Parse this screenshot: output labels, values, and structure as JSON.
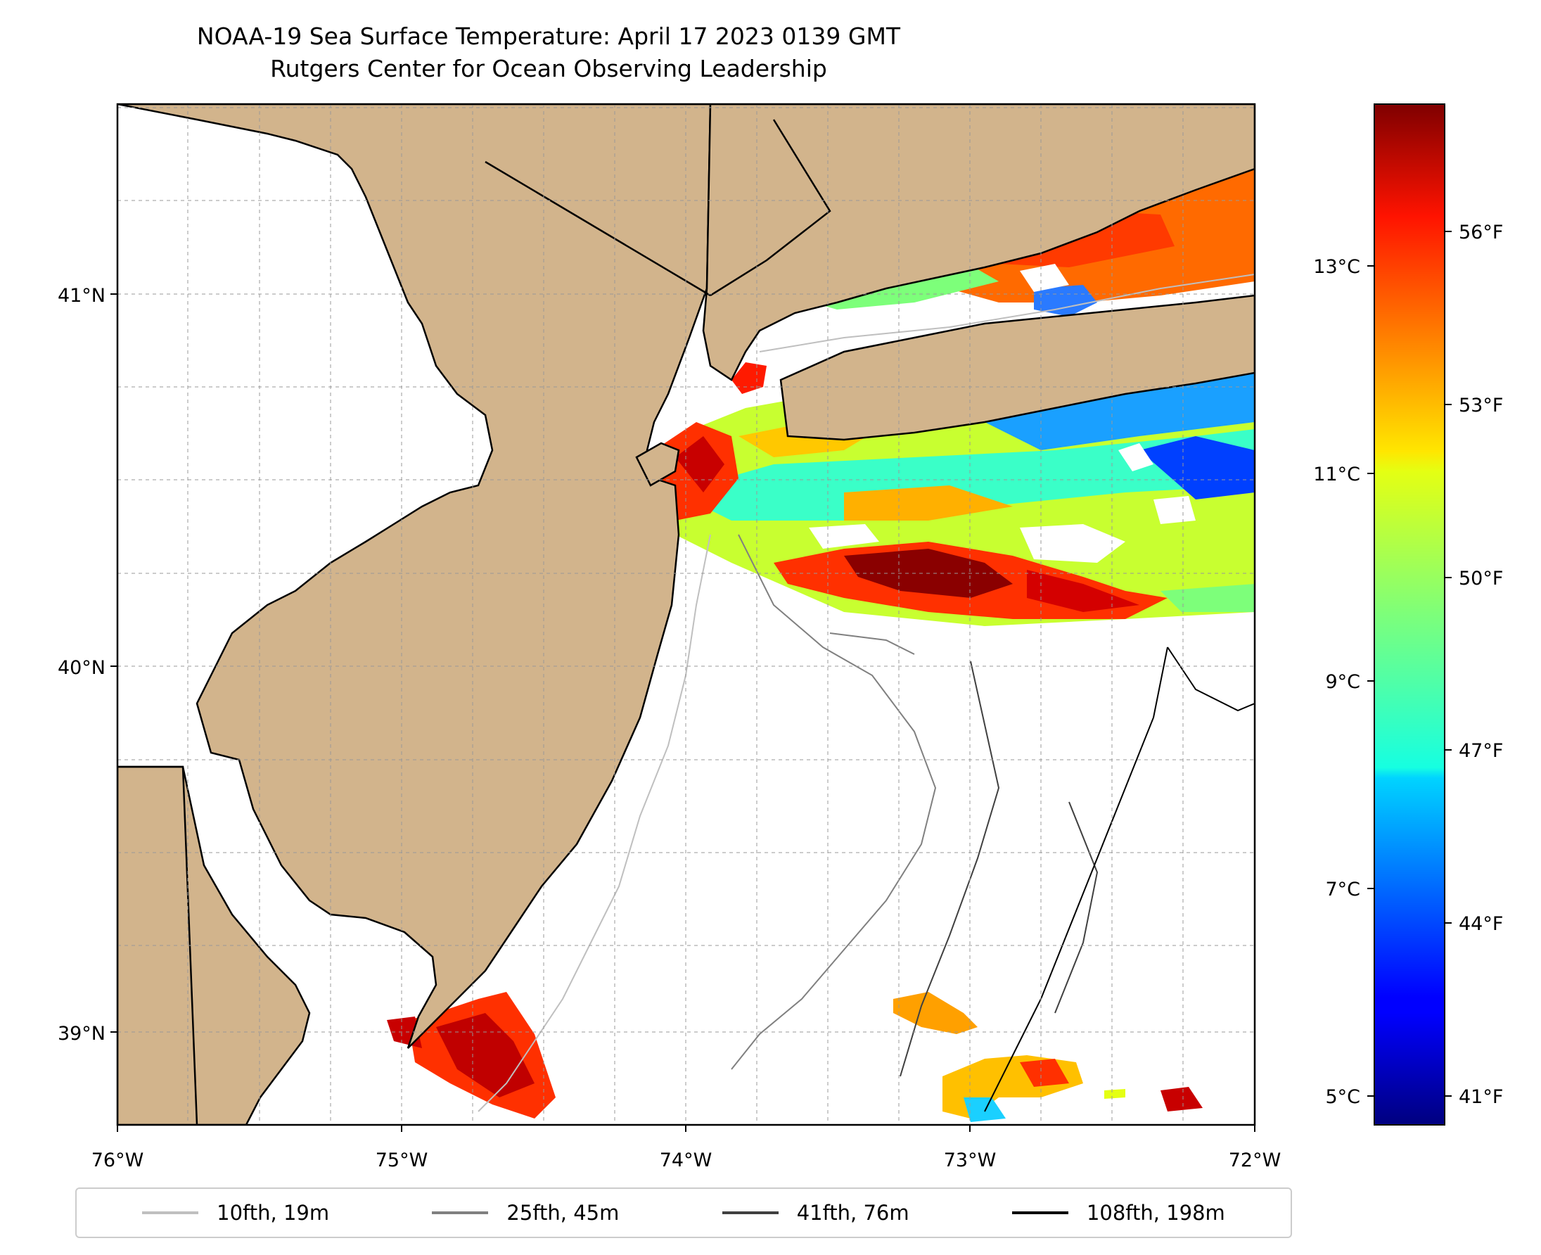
{
  "title": {
    "line1": "NOAA-19 Sea Surface Temperature: April 17 2023 0139 GMT",
    "line2": "Rutgers Center for Ocean Observing Leadership"
  },
  "map": {
    "lon_range": [
      -76,
      -72
    ],
    "lat_range": [
      38.68,
      41.52
    ],
    "x_ticks": [
      "76°W",
      "75°W",
      "74°W",
      "73°W",
      "72°W"
    ],
    "y_ticks": [
      "39°N",
      "40°N",
      "41°N"
    ],
    "gridlines": true,
    "land_color": "#d2b48c"
  },
  "colorbar": {
    "celsius_ticks": [
      "5°C",
      "7°C",
      "9°C",
      "11°C",
      "13°C"
    ],
    "fahrenheit_ticks": [
      "41°F",
      "44°F",
      "47°F",
      "50°F",
      "53°F",
      "56°F"
    ],
    "colormap": "jet"
  },
  "legend": {
    "items": [
      {
        "label": "10fth, 19m",
        "color": "#bfbfbf"
      },
      {
        "label": "25fth, 45m",
        "color": "#808080"
      },
      {
        "label": "41fth, 76m",
        "color": "#404040"
      },
      {
        "label": "108fth, 198m",
        "color": "#000000"
      }
    ]
  }
}
